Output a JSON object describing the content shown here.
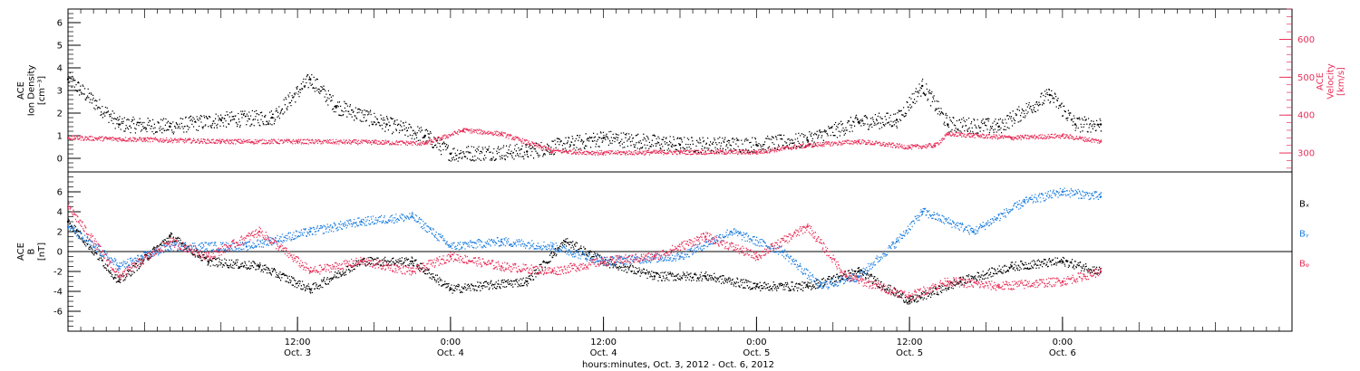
{
  "colors": {
    "axis": "#000000",
    "density": "#000000",
    "velocity": "#e8305a",
    "bx": "#000000",
    "by": "#1f7fe0",
    "bz": "#e8305a"
  },
  "x_axis": {
    "start": "2012-10-02 18:00",
    "end": "2012-10-06 18:00",
    "major_ticks": [
      {
        "time": "2012-10-03 12:00",
        "line1": "12:00",
        "line2": "Oct. 3"
      },
      {
        "time": "2012-10-04 00:00",
        "line1": "0:00",
        "line2": "Oct. 4"
      },
      {
        "time": "2012-10-04 12:00",
        "line1": "12:00",
        "line2": "Oct. 4"
      },
      {
        "time": "2012-10-05 00:00",
        "line1": "0:00",
        "line2": "Oct. 5"
      },
      {
        "time": "2012-10-05 12:00",
        "line1": "12:00",
        "line2": "Oct. 5"
      },
      {
        "time": "2012-10-06 00:00",
        "line1": "0:00",
        "line2": "Oct. 6"
      }
    ],
    "title": "hours:minutes, Oct.  3, 2012 - Oct.  6, 2012"
  },
  "chart_data": [
    {
      "type": "scatter",
      "panel": "top",
      "ylabel_left": [
        "ACE",
        "Ion Density",
        "[cm⁻³]"
      ],
      "ylabel_right": [
        "ACE",
        "Velocity",
        "[km/s]"
      ],
      "ylim_left": [
        -0.6,
        6.6
      ],
      "ylim_right": [
        250,
        680
      ],
      "yticks_left": [
        0,
        1,
        2,
        3,
        4,
        5,
        6
      ],
      "yticks_right": [
        300,
        400,
        500,
        600
      ],
      "series": [
        {
          "axis": "left",
          "x": [
            "2012-10-02 18:00",
            "2012-10-02 22:00",
            "2012-10-03 02:00",
            "2012-10-03 06:00",
            "2012-10-03 10:00",
            "2012-10-03 13:00",
            "2012-10-03 15:00",
            "2012-10-03 19:00",
            "2012-10-03 22:00",
            "2012-10-04 00:00",
            "2012-10-04 06:00",
            "2012-10-04 12:00",
            "2012-10-04 18:00",
            "2012-10-05 00:00",
            "2012-10-05 04:00",
            "2012-10-05 08:00",
            "2012-10-05 11:00",
            "2012-10-05 13:00",
            "2012-10-05 15:00",
            "2012-10-05 19:00",
            "2012-10-05 23:00",
            "2012-10-06 01:00",
            "2012-10-06 03:00"
          ],
          "values": [
            3.5,
            1.5,
            1.4,
            1.7,
            1.8,
            3.5,
            2.3,
            1.5,
            1.0,
            0.2,
            0.3,
            0.9,
            0.6,
            0.6,
            0.8,
            1.6,
            1.7,
            3.2,
            1.5,
            1.4,
            2.8,
            1.5,
            1.5
          ]
        },
        {
          "axis": "right",
          "x": [
            "2012-10-02 18:00",
            "2012-10-03 00:00",
            "2012-10-03 06:00",
            "2012-10-03 12:00",
            "2012-10-03 18:00",
            "2012-10-03 22:00",
            "2012-10-04 01:00",
            "2012-10-04 04:00",
            "2012-10-04 08:00",
            "2012-10-04 12:00",
            "2012-10-04 18:00",
            "2012-10-05 00:00",
            "2012-10-05 04:00",
            "2012-10-05 08:00",
            "2012-10-05 12:00",
            "2012-10-05 14:00",
            "2012-10-05 15:00",
            "2012-10-05 20:00",
            "2012-10-06 00:00",
            "2012-10-06 03:00"
          ],
          "values": [
            340,
            335,
            330,
            330,
            328,
            325,
            360,
            350,
            305,
            300,
            302,
            302,
            320,
            330,
            315,
            320,
            350,
            340,
            345,
            330
          ]
        }
      ]
    },
    {
      "type": "scatter",
      "panel": "bottom",
      "ylabel_left": [
        "ACE",
        "B",
        "[nT]"
      ],
      "ylim": [
        -8,
        8
      ],
      "yticks": [
        -6,
        -4,
        -2,
        0,
        2,
        4,
        6
      ],
      "legend_position": "right",
      "series": [
        {
          "name": "Bₓ",
          "x": [
            "2012-10-02 18:00",
            "2012-10-02 22:00",
            "2012-10-03 02:00",
            "2012-10-03 05:00",
            "2012-10-03 09:00",
            "2012-10-03 13:00",
            "2012-10-03 17:00",
            "2012-10-03 21:00",
            "2012-10-04 00:00",
            "2012-10-04 06:00",
            "2012-10-04 09:00",
            "2012-10-04 12:00",
            "2012-10-04 16:00",
            "2012-10-04 20:00",
            "2012-10-05 00:00",
            "2012-10-05 04:00",
            "2012-10-05 08:00",
            "2012-10-05 12:00",
            "2012-10-05 16:00",
            "2012-10-05 20:00",
            "2012-10-06 00:00",
            "2012-10-06 03:00"
          ],
          "values": [
            3.0,
            -3.0,
            1.5,
            -1.0,
            -1.5,
            -3.8,
            -1.0,
            -1.0,
            -3.8,
            -3.0,
            1.0,
            -1.0,
            -2.5,
            -2.5,
            -3.5,
            -3.5,
            -2.0,
            -5.0,
            -3.0,
            -1.5,
            -1.0,
            -2.0
          ]
        },
        {
          "name": "Bᵧ",
          "x": [
            "2012-10-02 18:00",
            "2012-10-02 22:00",
            "2012-10-03 02:00",
            "2012-10-03 08:00",
            "2012-10-03 13:00",
            "2012-10-03 17:00",
            "2012-10-03 21:00",
            "2012-10-04 00:00",
            "2012-10-04 04:00",
            "2012-10-04 08:00",
            "2012-10-04 12:00",
            "2012-10-04 18:00",
            "2012-10-04 22:00",
            "2012-10-05 02:00",
            "2012-10-05 05:00",
            "2012-10-05 08:00",
            "2012-10-05 11:00",
            "2012-10-05 13:00",
            "2012-10-05 17:00",
            "2012-10-05 21:00",
            "2012-10-06 00:00",
            "2012-10-06 03:00"
          ],
          "values": [
            2.5,
            -1.5,
            0.5,
            0.5,
            2.0,
            3.0,
            3.5,
            0.5,
            1.0,
            0.5,
            -1.0,
            -0.5,
            2.0,
            0.0,
            -3.5,
            -2.5,
            1.0,
            4.0,
            2.0,
            5.0,
            6.0,
            5.5
          ]
        },
        {
          "name": "Bᵩ",
          "x": [
            "2012-10-02 18:00",
            "2012-10-02 22:00",
            "2012-10-03 02:00",
            "2012-10-03 05:00",
            "2012-10-03 09:00",
            "2012-10-03 13:00",
            "2012-10-03 17:00",
            "2012-10-03 21:00",
            "2012-10-04 00:00",
            "2012-10-04 04:00",
            "2012-10-04 08:00",
            "2012-10-04 12:00",
            "2012-10-04 16:00",
            "2012-10-04 20:00",
            "2012-10-05 00:00",
            "2012-10-05 04:00",
            "2012-10-05 07:00",
            "2012-10-05 12:00",
            "2012-10-05 15:00",
            "2012-10-05 19:00",
            "2012-10-06 00:00",
            "2012-10-06 03:00"
          ],
          "values": [
            4.5,
            -2.5,
            1.0,
            -0.5,
            2.0,
            -2.0,
            -1.0,
            -2.0,
            -0.5,
            -1.5,
            -2.0,
            -1.0,
            -0.5,
            1.5,
            -0.5,
            2.5,
            -2.5,
            -4.5,
            -3.0,
            -3.5,
            -3.0,
            -2.0
          ]
        }
      ]
    }
  ]
}
